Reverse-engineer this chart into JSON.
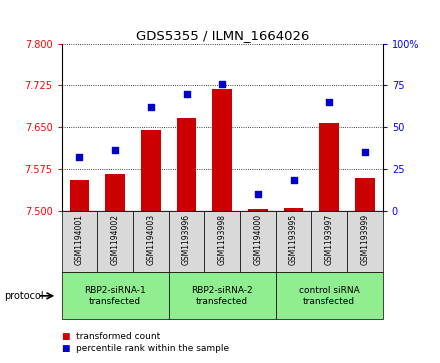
{
  "title": "GDS5355 / ILMN_1664026",
  "samples": [
    "GSM1194001",
    "GSM1194002",
    "GSM1194003",
    "GSM1193996",
    "GSM1193998",
    "GSM1194000",
    "GSM1193995",
    "GSM1193997",
    "GSM1193999"
  ],
  "bar_values": [
    7.555,
    7.565,
    7.645,
    7.667,
    7.718,
    7.503,
    7.505,
    7.658,
    7.558
  ],
  "percentile_values": [
    32,
    36,
    62,
    70,
    76,
    10,
    18,
    65,
    35
  ],
  "y_min": 7.5,
  "y_max": 7.8,
  "y_ticks": [
    7.5,
    7.575,
    7.65,
    7.725,
    7.8
  ],
  "y2_ticks": [
    0,
    25,
    50,
    75,
    100
  ],
  "bar_color": "#cc0000",
  "dot_color": "#0000cc",
  "bg_color_sample": "#d9d9d9",
  "bg_color_group": "#90ee90",
  "groups": [
    {
      "label": "RBP2-siRNA-1\ntransfected",
      "start": 0,
      "end": 3
    },
    {
      "label": "RBP2-siRNA-2\ntransfected",
      "start": 3,
      "end": 6
    },
    {
      "label": "control siRNA\ntransfected",
      "start": 6,
      "end": 9
    }
  ],
  "protocol_label": "protocol",
  "legend_bar_label": "transformed count",
  "legend_dot_label": "percentile rank within the sample"
}
